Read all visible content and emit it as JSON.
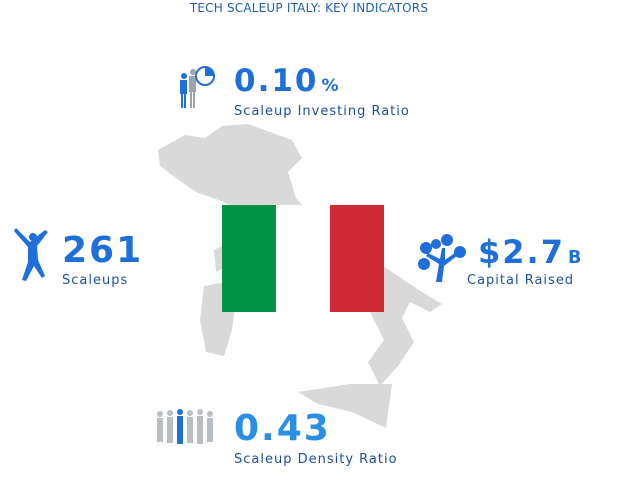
{
  "title": "TECH SCALEUP ITALY: KEY INDICATORS",
  "indicators": [
    {
      "value": "0.10",
      "unit": "%",
      "label": "Scaleup Investing Ratio"
    },
    {
      "value": "261",
      "label": "Scaleups"
    },
    {
      "value": "$2.7",
      "unit": "B",
      "label": "Capital Raised"
    },
    {
      "value": "0.43",
      "label": "Scaleup Density Ratio"
    }
  ]
}
